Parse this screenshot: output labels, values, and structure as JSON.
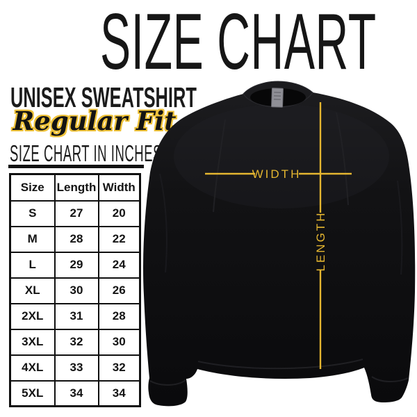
{
  "title": "SIZE CHART",
  "product": {
    "name": "UNISEX SWEATSHIRT",
    "fit": "Regular Fit"
  },
  "size_table": {
    "heading": "SIZE CHART IN INCHES",
    "columns": [
      "Size",
      "Length",
      "Width"
    ],
    "rows": [
      [
        "S",
        "27",
        "20"
      ],
      [
        "M",
        "28",
        "22"
      ],
      [
        "L",
        "29",
        "24"
      ],
      [
        "XL",
        "30",
        "26"
      ],
      [
        "2XL",
        "31",
        "28"
      ],
      [
        "3XL",
        "32",
        "30"
      ],
      [
        "4XL",
        "33",
        "32"
      ],
      [
        "5XL",
        "34",
        "34"
      ]
    ]
  },
  "diagram": {
    "width_label": "WIDTH",
    "length_label": "LENGTH"
  },
  "colors": {
    "accent_gold": "#e5b630",
    "ink": "#141414",
    "garment_black": "#0d0d0f",
    "tag_gray": "#8f8f96"
  },
  "chart_data": {
    "type": "table",
    "title": "SIZE CHART",
    "subtitle": "UNISEX SWEATSHIRT - Regular Fit - SIZE CHART IN INCHES",
    "columns": [
      "Size",
      "Length (inches)",
      "Width (inches)"
    ],
    "rows": [
      [
        "S",
        27,
        20
      ],
      [
        "M",
        28,
        22
      ],
      [
        "L",
        29,
        24
      ],
      [
        "XL",
        30,
        26
      ],
      [
        "2XL",
        31,
        28
      ],
      [
        "3XL",
        32,
        30
      ],
      [
        "4XL",
        33,
        32
      ],
      [
        "5XL",
        34,
        34
      ]
    ]
  }
}
